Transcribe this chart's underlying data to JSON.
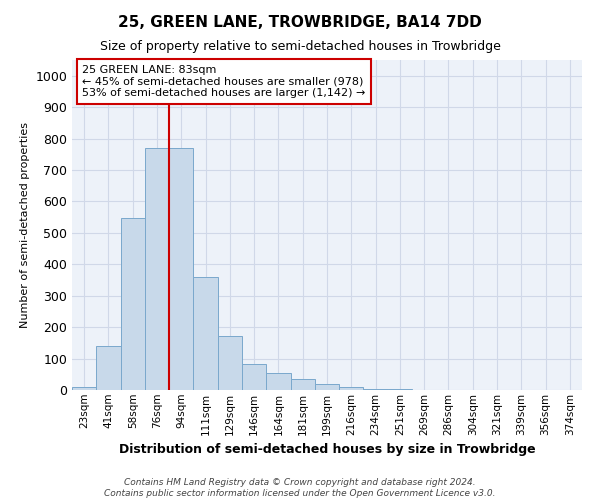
{
  "title": "25, GREEN LANE, TROWBRIDGE, BA14 7DD",
  "subtitle": "Size of property relative to semi-detached houses in Trowbridge",
  "xlabel": "Distribution of semi-detached houses by size in Trowbridge",
  "ylabel": "Number of semi-detached properties",
  "categories": [
    "23sqm",
    "41sqm",
    "58sqm",
    "76sqm",
    "94sqm",
    "111sqm",
    "129sqm",
    "146sqm",
    "164sqm",
    "181sqm",
    "199sqm",
    "216sqm",
    "234sqm",
    "251sqm",
    "269sqm",
    "286sqm",
    "304sqm",
    "321sqm",
    "339sqm",
    "356sqm",
    "374sqm"
  ],
  "values": [
    8,
    140,
    548,
    770,
    770,
    358,
    172,
    82,
    55,
    35,
    18,
    8,
    4,
    2,
    1,
    0,
    0,
    0,
    0,
    0,
    0
  ],
  "bar_color": "#c8d9ea",
  "bar_edge_color": "#7aa8cc",
  "grid_color": "#d0d8e8",
  "background_color": "#edf2f9",
  "redline_label": "25 GREEN LANE: 83sqm",
  "smaller_pct": "45%",
  "smaller_count": "978",
  "larger_pct": "53%",
  "larger_count": "1,142",
  "annotation_box_color": "#ffffff",
  "annotation_border_color": "#cc0000",
  "redline_color": "#cc0000",
  "redline_x": 3.5,
  "ylim": [
    0,
    1050
  ],
  "yticks": [
    0,
    100,
    200,
    300,
    400,
    500,
    600,
    700,
    800,
    900,
    1000
  ],
  "footer_line1": "Contains HM Land Registry data © Crown copyright and database right 2024.",
  "footer_line2": "Contains public sector information licensed under the Open Government Licence v3.0."
}
